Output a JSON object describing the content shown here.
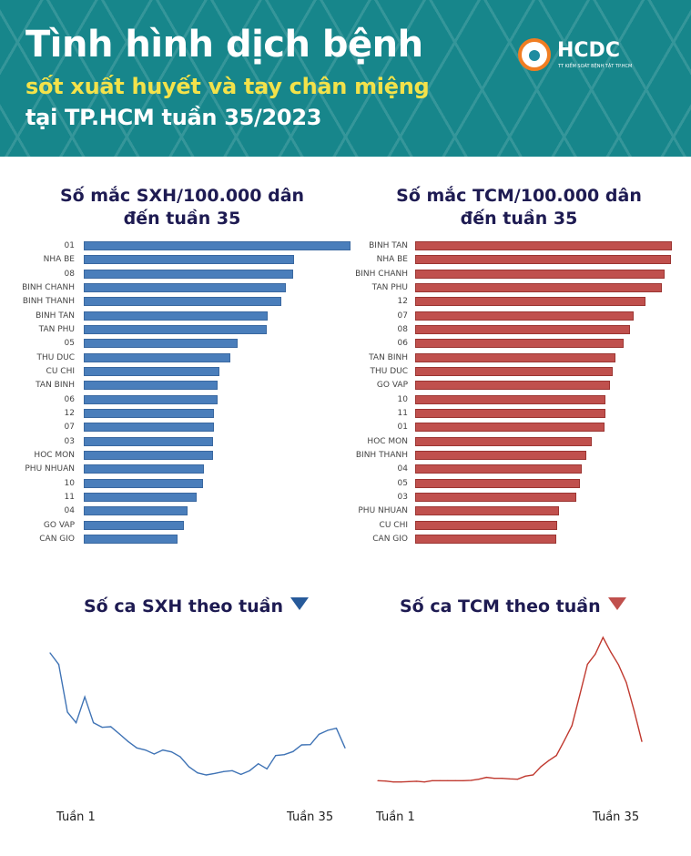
{
  "header": {
    "title": "Tình hình dịch bệnh",
    "subtitle": "sốt xuất huyết và tay chân miệng",
    "subtitle2": "tại TP.HCM tuần 35/2023",
    "logo_text": "HCDC",
    "logo_subtext": "TT KIỂM SOÁT BỆNH TẬT TP.HCM",
    "background_color": "#17868b",
    "accent_color": "#f3e24a"
  },
  "chart_data": [
    {
      "type": "bar",
      "orientation": "horizontal",
      "title": "Số mắc SXH/100.000 dân",
      "title2": "đến tuần 35",
      "color": "#4a7ebb",
      "categories": [
        "01",
        "NHA BE",
        "08",
        "BINH CHANH",
        "BINH THANH",
        "BINH TAN",
        "TAN PHU",
        "05",
        "THU DUC",
        "CU CHI",
        "TAN BINH",
        "06",
        "12",
        "07",
        "03",
        "HOC MON",
        "PHU NHUAN",
        "10",
        "11",
        "04",
        "GO VAP",
        "CAN GIO"
      ],
      "values": [
        100,
        78.9,
        78.6,
        75.9,
        74.0,
        69.0,
        68.5,
        57.7,
        54.9,
        50.7,
        50.2,
        50.0,
        48.7,
        48.7,
        48.5,
        48.4,
        45.0,
        44.8,
        42.4,
        38.8,
        37.4,
        35.1
      ],
      "value_note": "relative (longest bar = 100); no axis printed"
    },
    {
      "type": "bar",
      "orientation": "horizontal",
      "title": "Số mắc TCM/100.000 dân",
      "title2": "đến tuần 35",
      "color": "#c0504d",
      "categories": [
        "BINH TAN",
        "NHA BE",
        "BINH CHANH",
        "TAN PHU",
        "12",
        "07",
        "08",
        "06",
        "TAN BINH",
        "THU DUC",
        "GO VAP",
        "10",
        "11",
        "01",
        "HOC MON",
        "BINH THANH",
        "04",
        "05",
        "03",
        "PHU NHUAN",
        "CU CHI",
        "CAN GIO"
      ],
      "values": [
        100,
        99.5,
        97.0,
        96.2,
        89.6,
        85.1,
        83.6,
        81.1,
        77.9,
        77.0,
        75.8,
        74.1,
        74.1,
        73.8,
        68.7,
        66.6,
        64.9,
        64.1,
        62.8,
        56.2,
        55.4,
        54.9
      ],
      "value_note": "relative (longest bar = 100); no axis printed"
    },
    {
      "type": "line",
      "title": "Số ca SXH theo tuần",
      "color": "#3f73b5",
      "x_start_label": "Tuần 1",
      "x_end_label": "Tuần 35",
      "x": [
        1,
        2,
        3,
        4,
        5,
        6,
        7,
        8,
        9,
        10,
        11,
        12,
        13,
        14,
        15,
        16,
        17,
        18,
        19,
        20,
        21,
        22,
        23,
        24,
        25,
        26,
        27,
        28,
        29,
        30,
        31,
        32,
        33,
        34,
        35
      ],
      "values": [
        450,
        412,
        255,
        220,
        305,
        220,
        205,
        207,
        183,
        158,
        137,
        130,
        117,
        130,
        124,
        108,
        75,
        55,
        48,
        53,
        59,
        62,
        50,
        62,
        85,
        68,
        112,
        115,
        125,
        147,
        148,
        182,
        195,
        202,
        137
      ]
    },
    {
      "type": "line",
      "title": "Số ca TCM theo tuần",
      "color": "#c0392f",
      "x_start_label": "Tuần 1",
      "x_end_label": "Tuần 35",
      "x": [
        1,
        2,
        3,
        4,
        5,
        6,
        7,
        8,
        9,
        10,
        11,
        12,
        13,
        14,
        15,
        16,
        17,
        18,
        19,
        20,
        21,
        22,
        23,
        24,
        25,
        26,
        27,
        28,
        29,
        30,
        31,
        32,
        33,
        34,
        35
      ],
      "values": [
        29,
        28,
        25,
        25,
        26,
        27,
        25,
        29,
        29,
        29,
        29,
        29,
        30,
        34,
        40,
        37,
        37,
        35,
        34,
        44,
        48,
        75,
        95,
        112,
        160,
        210,
        310,
        412,
        445,
        500,
        452,
        410,
        352,
        260,
        158
      ]
    }
  ]
}
